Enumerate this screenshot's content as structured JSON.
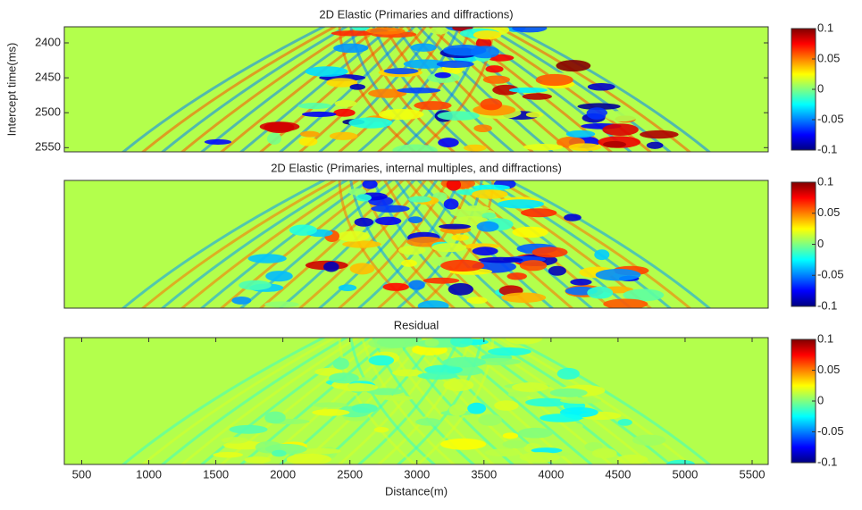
{
  "chart_data": [
    {
      "type": "heatmap",
      "title": "2D Elastic (Primaries and diffractions)",
      "y_label": "Intercept time(ms)",
      "ylim": [
        2377,
        2556
      ],
      "yticks": [
        2400,
        2450,
        2500,
        2550
      ],
      "y_inverted": true,
      "clim": [
        -0.1,
        0.1
      ],
      "cticks": [
        0.1,
        0.05,
        0,
        -0.05,
        -0.1
      ],
      "colormap": "jet"
    },
    {
      "type": "heatmap",
      "title": "2D Elastic (Primaries, internal multiples, and diffractions)",
      "clim": [
        -0.1,
        0.1
      ],
      "cticks": [
        0.1,
        0.05,
        0,
        -0.05,
        -0.1
      ],
      "colormap": "jet"
    },
    {
      "type": "heatmap",
      "title": "Residual",
      "x_label": "Distance(m)",
      "xlim": [
        370,
        5620
      ],
      "xticks": [
        500,
        1000,
        1500,
        2000,
        2500,
        3000,
        3500,
        4000,
        4500,
        5000,
        5500
      ],
      "clim": [
        -0.1,
        0.1
      ],
      "cticks": [
        0.1,
        0.05,
        0,
        -0.05,
        -0.1
      ],
      "colormap": "jet"
    }
  ]
}
